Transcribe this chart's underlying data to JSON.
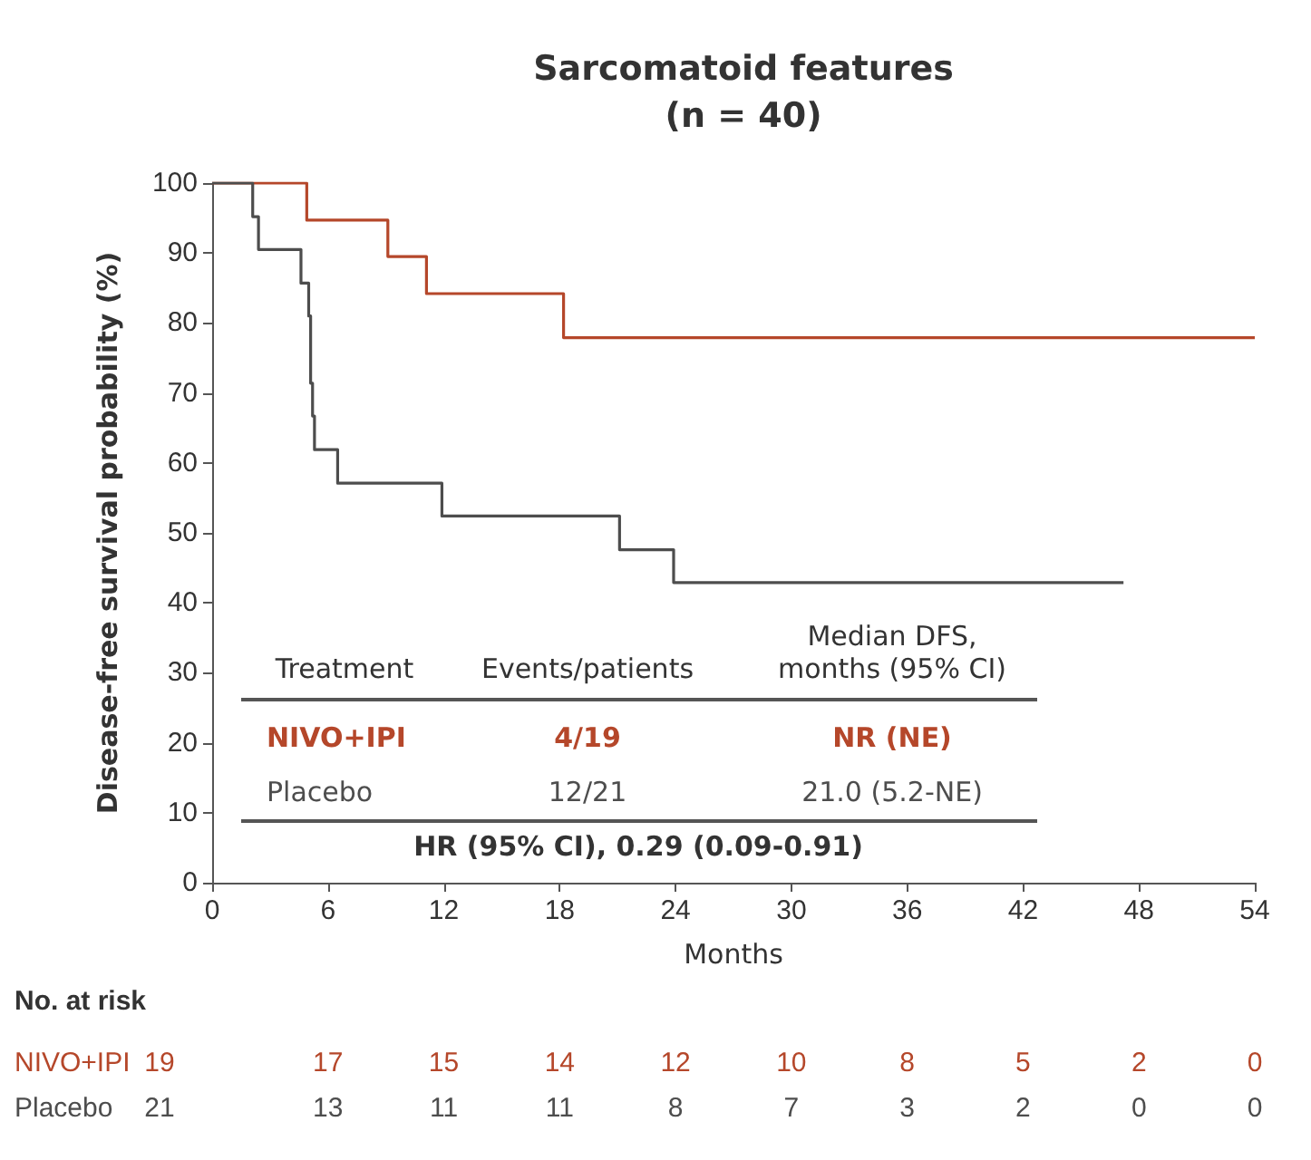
{
  "chart_data": {
    "type": "step",
    "title": "Sarcomatoid features\n(n = 40)",
    "xlabel": "Months",
    "ylabel": "Disease-free survival probability (%)",
    "xlim": [
      0,
      54
    ],
    "xticks": [
      0,
      6,
      12,
      18,
      24,
      30,
      36,
      42,
      48,
      54
    ],
    "ylim": [
      0,
      100
    ],
    "yticks": [
      0,
      10,
      20,
      30,
      40,
      50,
      60,
      70,
      80,
      90,
      100
    ],
    "grid": false,
    "legend": false,
    "marker": "none",
    "line_style": "solid",
    "series": [
      {
        "name": "NIVO+IPI",
        "color": "#b5472a",
        "x": [
          0,
          4.9,
          9.1,
          11.1,
          18.2,
          54
        ],
        "values": [
          100,
          94.7,
          89.5,
          84.2,
          77.9,
          77.9
        ]
      },
      {
        "name": "Placebo",
        "color": "#4d4d4d",
        "x": [
          0,
          2.1,
          2.4,
          4.6,
          5.0,
          5.1,
          5.2,
          5.3,
          6.5,
          11.9,
          21.1,
          23.9,
          47.2
        ],
        "values": [
          100,
          95.2,
          90.5,
          85.7,
          81.0,
          71.4,
          66.7,
          61.9,
          57.1,
          52.4,
          47.6,
          42.9,
          42.9
        ]
      }
    ],
    "annotations": [
      "Treatment",
      "Events/patients",
      "Median DFS,\nmonths (95% CI)",
      "4/19",
      "NR (NE)",
      "12/21",
      "21.0 (5.2-NE)",
      "HR (95% CI), 0.29 (0.09-0.91)",
      "No. at risk",
      "19",
      "17",
      "15",
      "14",
      "12",
      "10",
      "8",
      "5",
      "2",
      "0",
      "21",
      "13",
      "11",
      "11",
      "8",
      "7",
      "3",
      "2",
      "0",
      "0"
    ]
  }
}
